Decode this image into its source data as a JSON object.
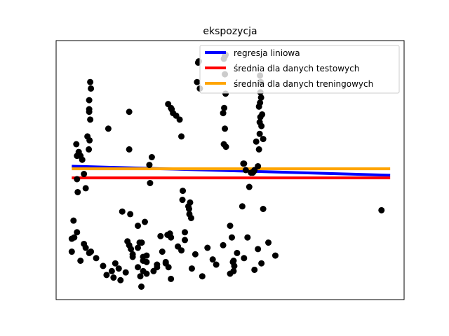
{
  "chart_data": {
    "type": "scatter",
    "title": "ekspozycja",
    "xlabel": "",
    "ylabel": "",
    "axes_visible": false,
    "grid": false,
    "legend_position": "upper-right",
    "xlim": [
      0,
      100
    ],
    "ylim": [
      0,
      100
    ],
    "points": {
      "color": "#000000",
      "x": [
        4.5,
        5.2,
        5.0,
        6.0,
        6.2,
        5.8,
        6.5,
        6.0,
        7.0,
        7.5,
        8.0,
        8.5,
        9.0,
        9.5,
        9.5,
        9.8,
        10.0,
        9.5,
        9.8,
        9.6,
        9.4,
        15.0,
        16.5,
        18.5,
        19.0,
        21.0,
        21.0,
        21.3,
        21.5,
        21.0,
        22.0,
        23.5,
        23.5,
        24.2,
        24.5,
        25.0,
        24.6,
        25.0,
        25.5,
        26.0,
        26.0,
        26.8,
        27.0,
        27.5,
        29.0,
        30.5,
        31.5,
        32.3,
        32.0,
        32.7,
        33.0,
        32.2,
        33.2,
        33.0,
        33.6,
        34.5,
        35.5,
        36.0,
        36.3,
        36.4,
        37.0,
        38.0,
        38.2,
        38.5,
        38.3,
        38.8,
        40.5,
        40.8,
        41.0,
        41.3,
        48.0,
        48.3,
        48.5,
        48.2,
        48.5,
        48.7,
        48.7,
        48.5,
        48.2,
        48.8,
        50.0,
        50.5,
        50.8,
        51.0,
        51.2,
        51.0,
        53.5,
        53.8,
        54.0,
        54.5,
        55.5,
        56.5,
        56.0,
        56.8,
        57.0,
        57.5,
        58.0,
        58.3,
        58.7,
        58.5,
        58.3,
        58.5,
        58.6,
        58.8,
        58.7,
        58.6,
        58.9,
        59.2,
        59.0,
        59.5,
        59.5,
        93.5
      ],
      "y": [
        23.5,
        24.0,
        30.5,
        46.5,
        41.5,
        60.0,
        57.0,
        55.5,
        55.5,
        54.0,
        48.5,
        43.0,
        63.0,
        72.5,
        77.0,
        84.0,
        81.5,
        73.5,
        69.5,
        61.5,
        58.0,
        66.0,
        8.5,
        7.5,
        34.0,
        58.0,
        72.5,
        33.0,
        19.5,
        21.0,
        17.5,
        20.0,
        28.5,
        9.0,
        5.0,
        16.5,
        22.0,
        11.0,
        30.0,
        10.0,
        14.5,
        52.0,
        45.0,
        55.0,
        13.5,
        18.5,
        14.0,
        12.5,
        25.0,
        25.5,
        24.0,
        75.5,
        73.5,
        74.0,
        72.0,
        71.0,
        69.5,
        63.0,
        38.5,
        42.0,
        26.0,
        36.0,
        35.0,
        37.5,
        33.0,
        31.5,
        84.0,
        91.5,
        92.0,
        81.5,
        72.0,
        74.0,
        87.0,
        93.0,
        94.0,
        94.5,
        79.5,
        66.0,
        60.0,
        59.0,
        28.5,
        24.0,
        14.5,
        15.0,
        13.0,
        11.0,
        36.0,
        52.5,
        52.5,
        50.0,
        43.5,
        49.0,
        49.0,
        49.5,
        50.0,
        61.0,
        51.5,
        58.0,
        70.5,
        68.5,
        74.5,
        64.0,
        86.5,
        84.0,
        80.0,
        76.0,
        78.0,
        71.5,
        67.0,
        62.0,
        35.0,
        34.5
      ],
      "x2": [
        4.5,
        6.0,
        7.0,
        8.0,
        8.5,
        9.5,
        10.0,
        11.5,
        13.5,
        14.5,
        16.0,
        17.0,
        18.0,
        20.0,
        20.5,
        22.0,
        23.5,
        24.0,
        25.0,
        26.0,
        28.0,
        29.0,
        30.0,
        31.5,
        33.0,
        35.0,
        36.0,
        37.0,
        39.0,
        40.0,
        42.0,
        43.5,
        45.0,
        46.0,
        48.0,
        50.0,
        52.0,
        54.0,
        55.0,
        57.0,
        58.0,
        59.0,
        61.0,
        63.0
      ],
      "y2": [
        18.5,
        26.0,
        15.0,
        21.5,
        20.0,
        18.0,
        18.5,
        16.0,
        13.0,
        9.5,
        11.0,
        14.0,
        12.0,
        10.5,
        22.5,
        16.5,
        12.5,
        22.0,
        15.0,
        17.0,
        11.0,
        12.5,
        24.5,
        14.5,
        8.0,
        20.5,
        19.0,
        23.0,
        12.0,
        17.5,
        9.0,
        20.0,
        15.5,
        13.5,
        21.0,
        10.0,
        18.0,
        16.0,
        24.0,
        11.5,
        19.5,
        14.0,
        22.0,
        17.0
      ]
    },
    "series": [
      {
        "name": "regresja liniowa",
        "color": "#0000ff",
        "x": [
          4.5,
          96
        ],
        "y": [
          51.5,
          48.0
        ]
      },
      {
        "name": "średnia dla danych testowych",
        "color": "#ff0000",
        "x": [
          4.5,
          96
        ],
        "y": [
          47.0,
          47.0
        ]
      },
      {
        "name": "średnia dla danych treningowych",
        "color": "#ffa500",
        "x": [
          4.5,
          96
        ],
        "y": [
          50.5,
          50.5
        ]
      }
    ]
  }
}
